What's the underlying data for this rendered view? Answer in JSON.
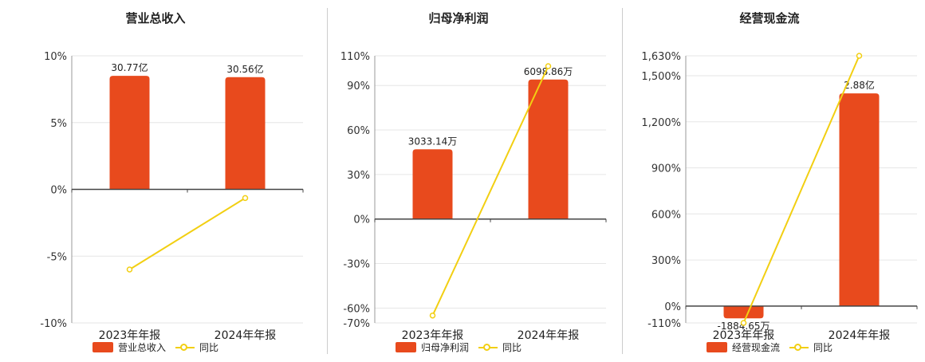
{
  "colors": {
    "bar": "#e84a1d",
    "line": "#f2cf12",
    "axis": "#444444",
    "grid": "#e6e6e6"
  },
  "chart_data": [
    {
      "type": "bar",
      "title": "营业总收入",
      "categories": [
        "2023年年报",
        "2024年年报"
      ],
      "series": [
        {
          "name": "营业总收入",
          "kind": "bar",
          "values": [
            8.5,
            8.4
          ],
          "labels": [
            "30.77亿",
            "30.56亿"
          ]
        },
        {
          "name": "同比",
          "kind": "line",
          "values": [
            -6.0,
            -0.65
          ]
        }
      ],
      "ylim": [
        -10,
        10
      ],
      "yticks": [
        -10,
        -5,
        0,
        5,
        10
      ],
      "ytick_labels": [
        "-10%",
        "-5%",
        "0%",
        "5%",
        "10%"
      ],
      "legend": [
        "营业总收入",
        "同比"
      ],
      "legend_position": "bottom",
      "grid": true
    },
    {
      "type": "bar",
      "title": "归母净利润",
      "categories": [
        "2023年年报",
        "2024年年报"
      ],
      "series": [
        {
          "name": "归母净利润",
          "kind": "bar",
          "values": [
            47,
            94
          ],
          "labels": [
            "3033.14万",
            "6098.86万"
          ]
        },
        {
          "name": "同比",
          "kind": "line",
          "values": [
            -65,
            103
          ]
        }
      ],
      "ylim": [
        -70,
        110
      ],
      "yticks": [
        -70,
        -60,
        -30,
        0,
        30,
        60,
        90,
        110
      ],
      "ytick_labels": [
        "-70%",
        "-60%",
        "-30%",
        "0%",
        "30%",
        "60%",
        "90%",
        "110%"
      ],
      "legend": [
        "归母净利润",
        "同比"
      ],
      "legend_position": "bottom",
      "grid": true
    },
    {
      "type": "bar",
      "title": "经营现金流",
      "categories": [
        "2023年年报",
        "2024年年报"
      ],
      "series": [
        {
          "name": "经营现金流",
          "kind": "bar",
          "values": [
            -80,
            1385
          ],
          "labels": [
            "-1884.65万",
            "2.88亿"
          ]
        },
        {
          "name": "同比",
          "kind": "line",
          "values": [
            -110,
            1630
          ]
        }
      ],
      "ylim": [
        -110,
        1630
      ],
      "yticks": [
        -110,
        0,
        300,
        600,
        900,
        1200,
        1500,
        1630
      ],
      "ytick_labels": [
        "-110%",
        "0%",
        "300%",
        "600%",
        "900%",
        "1,200%",
        "1,500%",
        "1,630%"
      ],
      "legend": [
        "经营现金流",
        "同比"
      ],
      "legend_position": "bottom",
      "grid": true
    }
  ]
}
